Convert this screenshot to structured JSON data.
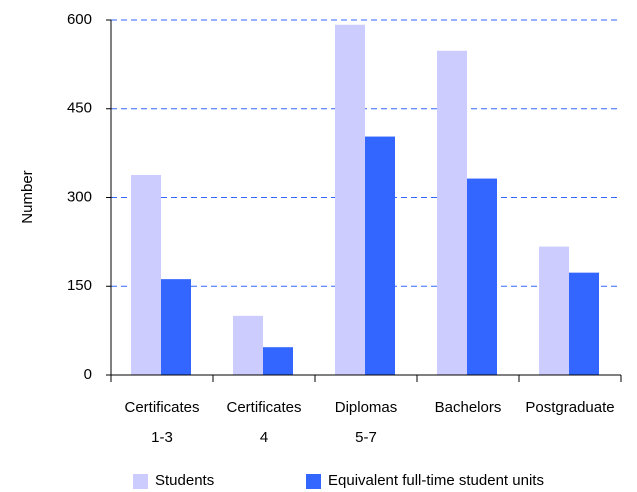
{
  "chart_data": {
    "type": "bar",
    "y_label": "Number",
    "categories": [
      [
        "Certificates",
        "1-3"
      ],
      [
        "Certificates",
        "4"
      ],
      [
        "Diplomas",
        "5-7"
      ],
      [
        "Bachelors"
      ],
      [
        "Postgraduate"
      ]
    ],
    "series": [
      {
        "name": "Students",
        "color": "#ccccff",
        "values": [
          338,
          100,
          592,
          548,
          217
        ]
      },
      {
        "name": "Equivalent full-time student units",
        "color": "#3366ff",
        "values": [
          162,
          47,
          403,
          332,
          173
        ]
      }
    ],
    "ylim": [
      0,
      600
    ],
    "yticks": [
      0,
      150,
      300,
      450,
      600
    ],
    "grid": true
  }
}
